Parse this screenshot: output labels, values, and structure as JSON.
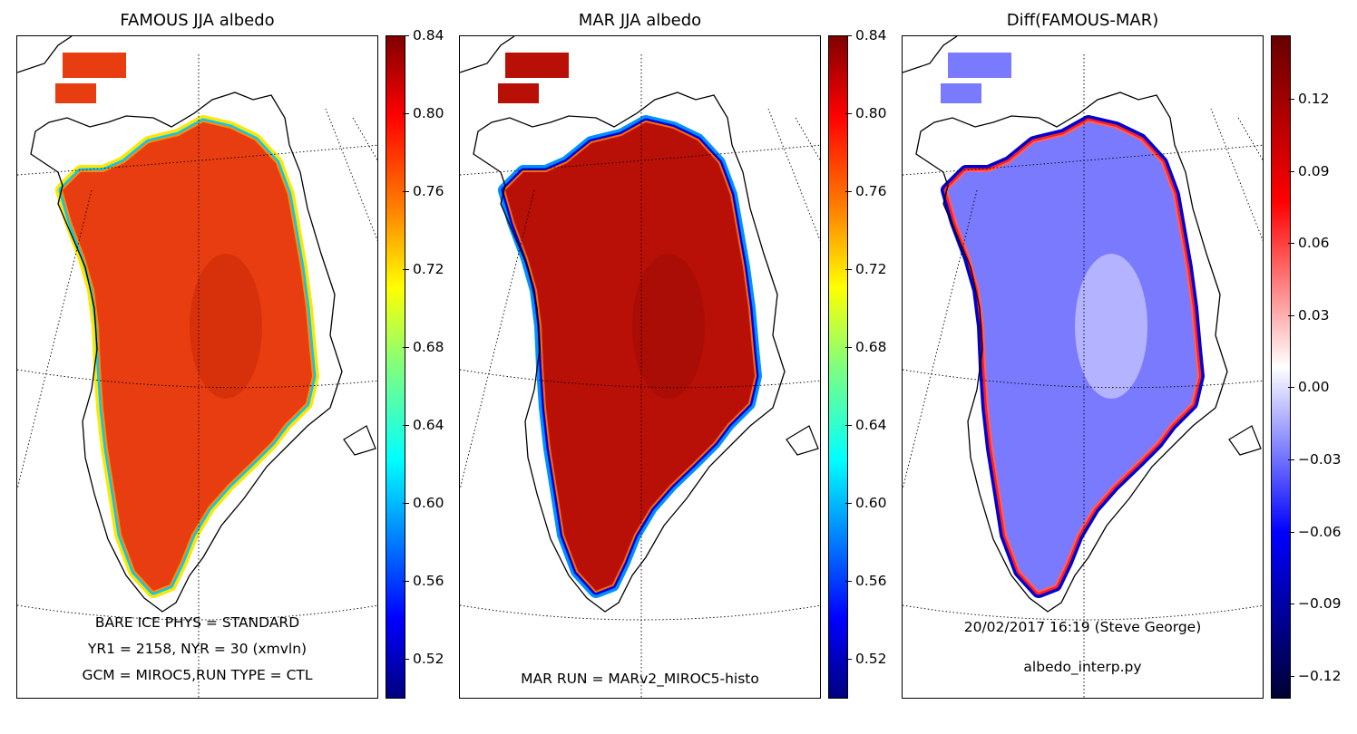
{
  "panels": [
    {
      "title": "FAMOUS JJA albedo",
      "annotations": [
        "BARE ICE PHYS = STANDARD",
        "YR1 = 2158, NYR = 30 (xmvln)",
        "GCM = MIROC5,RUN TYPE = CTL"
      ],
      "colorbar": {
        "colormap": "jet",
        "ticks": [
          "0.84",
          "0.80",
          "0.76",
          "0.72",
          "0.68",
          "0.64",
          "0.60",
          "0.56",
          "0.52"
        ]
      },
      "interior_color": "#e83d10",
      "center_color": "#cc2a0a",
      "edge_colors": [
        "#00c8ff",
        "#ffe600",
        "#ff8c00"
      ]
    },
    {
      "title": "MAR JJA albedo",
      "annotations": [
        "MAR RUN = MARv2_MIROC5-histo"
      ],
      "colorbar": {
        "colormap": "jet",
        "ticks": [
          "0.84",
          "0.80",
          "0.76",
          "0.72",
          "0.68",
          "0.64",
          "0.60",
          "0.56",
          "0.52"
        ]
      },
      "interior_color": "#b81006",
      "center_color": "#a00c05",
      "edge_colors": [
        "#0000e0",
        "#0090ff",
        "#ff6a00"
      ]
    },
    {
      "title": "Diff(FAMOUS-MAR)",
      "annotations": [
        "20/02/2017 16:19 (Steve George)",
        "albedo_interp.py"
      ],
      "colorbar": {
        "colormap": "bwr",
        "ticks": [
          "0.12",
          "0.09",
          "0.06",
          "0.03",
          "0.00",
          "−0.03",
          "−0.06",
          "−0.09",
          "−0.12"
        ]
      },
      "interior_color": "#7a7aff",
      "center_color": "#d8d8ff",
      "edge_colors": [
        "#ff2020",
        "#0000d0",
        "#ff6060"
      ]
    }
  ]
}
